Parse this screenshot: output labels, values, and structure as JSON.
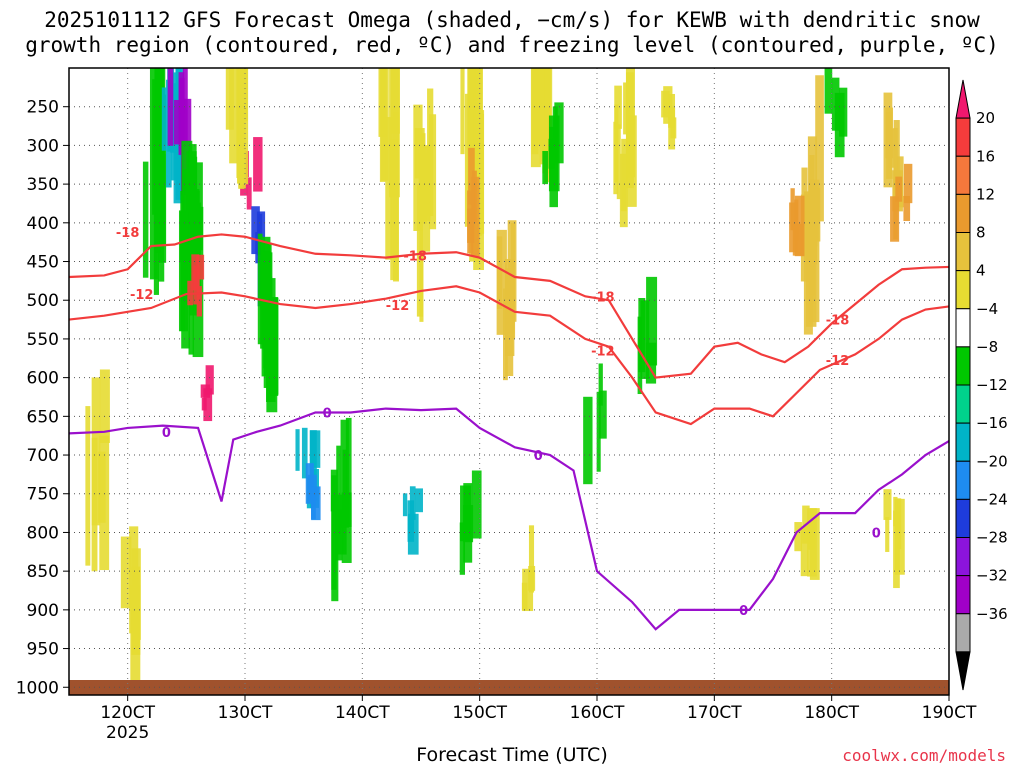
{
  "title_line1": "2025101112 GFS Forecast Omega (shaded, −cm/s) for KEWB with dendritic snow",
  "title_line2": "growth region (contoured, red, ºC) and freezing level (contoured, purple, ºC)",
  "xlabel": "Forecast Time (UTC)",
  "source": "coolwx.com/models",
  "chart_data": {
    "type": "heatmap",
    "title": "2025101112 GFS Forecast Omega (shaded, −cm/s) for KEWB with dendritic snow growth region (contoured, red, ºC) and freezing level (contoured, purple, ºC)",
    "xlabel": "Forecast Time (UTC)",
    "ylabel": "",
    "x_ticks": [
      "120CT",
      "130CT",
      "140CT",
      "150CT",
      "160CT",
      "170CT",
      "180CT",
      "190CT"
    ],
    "x_tick_values": [
      12,
      13,
      14,
      15,
      16,
      17,
      18,
      19
    ],
    "x_sublabel": "2025",
    "xlim": [
      11.5,
      19
    ],
    "y_ticks": [
      250,
      300,
      350,
      400,
      450,
      500,
      550,
      600,
      650,
      700,
      750,
      800,
      850,
      900,
      950,
      1000
    ],
    "ylim": [
      200,
      1010
    ],
    "grid": true,
    "colorbar": {
      "labels": [
        "20",
        "16",
        "12",
        "8",
        "4",
        "−4",
        "−8",
        "−12",
        "−16",
        "−20",
        "−24",
        "−28",
        "−32",
        "−36"
      ],
      "colors": [
        "#f0186e",
        "#f53c3c",
        "#f5783c",
        "#ea9a2e",
        "#e6c23c",
        "#e6dc32",
        "#ffffff",
        "#00c800",
        "#00d28c",
        "#00b4c8",
        "#1e8cf0",
        "#1e3cdc",
        "#8c14dc",
        "#a000c8",
        "#aaaaaa",
        "#000000"
      ]
    },
    "series": [
      {
        "name": "-18",
        "color": "#f23c3c",
        "x": [
          11.5,
          11.8,
          12.0,
          12.2,
          12.4,
          12.6,
          12.8,
          13.0,
          13.3,
          13.6,
          13.9,
          14.2,
          14.5,
          14.8,
          15.0,
          15.3,
          15.6,
          15.9,
          16.1,
          16.3,
          16.5,
          16.8,
          17.0,
          17.2,
          17.4,
          17.6,
          17.8,
          18.0,
          18.2,
          18.4,
          18.6,
          18.8,
          19.0
        ],
        "y": [
          470,
          468,
          460,
          430,
          428,
          418,
          415,
          418,
          430,
          440,
          442,
          445,
          440,
          438,
          445,
          470,
          475,
          495,
          500,
          550,
          600,
          595,
          560,
          555,
          570,
          580,
          560,
          530,
          505,
          480,
          460,
          458,
          457
        ]
      },
      {
        "name": "-12",
        "color": "#f23c3c",
        "x": [
          11.5,
          11.8,
          12.0,
          12.2,
          12.5,
          12.8,
          13.0,
          13.3,
          13.6,
          13.9,
          14.2,
          14.5,
          14.8,
          15.0,
          15.3,
          15.6,
          15.9,
          16.1,
          16.3,
          16.5,
          16.8,
          17.0,
          17.3,
          17.5,
          17.7,
          17.9,
          18.2,
          18.4,
          18.6,
          18.8,
          19.0
        ],
        "y": [
          525,
          520,
          515,
          510,
          492,
          490,
          495,
          505,
          510,
          505,
          498,
          488,
          482,
          490,
          515,
          520,
          550,
          560,
          600,
          645,
          660,
          640,
          640,
          650,
          620,
          590,
          570,
          550,
          525,
          512,
          508
        ]
      },
      {
        "name": "0",
        "color": "#9a10cc",
        "x": [
          11.5,
          11.8,
          12.0,
          12.3,
          12.6,
          12.8,
          12.9,
          13.1,
          13.3,
          13.6,
          13.9,
          14.2,
          14.5,
          14.8,
          15.0,
          15.3,
          15.6,
          15.8,
          16.0,
          16.3,
          16.5,
          16.7,
          17.0,
          17.3,
          17.5,
          17.7,
          17.9,
          18.2,
          18.4,
          18.6,
          18.8,
          19.0
        ],
        "y": [
          672,
          670,
          665,
          662,
          665,
          760,
          680,
          670,
          662,
          645,
          645,
          640,
          642,
          640,
          665,
          690,
          700,
          720,
          850,
          890,
          925,
          900,
          900,
          900,
          860,
          800,
          775,
          775,
          745,
          725,
          700,
          682
        ]
      }
    ],
    "contour_labels": [
      {
        "text": "-18",
        "x": 12.0,
        "y": 412
      },
      {
        "text": "-18",
        "x": 14.45,
        "y": 442
      },
      {
        "text": "-18",
        "x": 16.05,
        "y": 495
      },
      {
        "text": "-18",
        "x": 18.05,
        "y": 525
      },
      {
        "text": "-12",
        "x": 12.12,
        "y": 492
      },
      {
        "text": "-12",
        "x": 14.3,
        "y": 506
      },
      {
        "text": "-12",
        "x": 16.05,
        "y": 565
      },
      {
        "text": "-12",
        "x": 18.05,
        "y": 577
      },
      {
        "text": "0",
        "x": 12.33,
        "y": 670
      },
      {
        "text": "0",
        "x": 13.7,
        "y": 645
      },
      {
        "text": "0",
        "x": 15.5,
        "y": 700
      },
      {
        "text": "0",
        "x": 17.25,
        "y": 900
      },
      {
        "text": "0",
        "x": 18.38,
        "y": 800
      }
    ]
  }
}
